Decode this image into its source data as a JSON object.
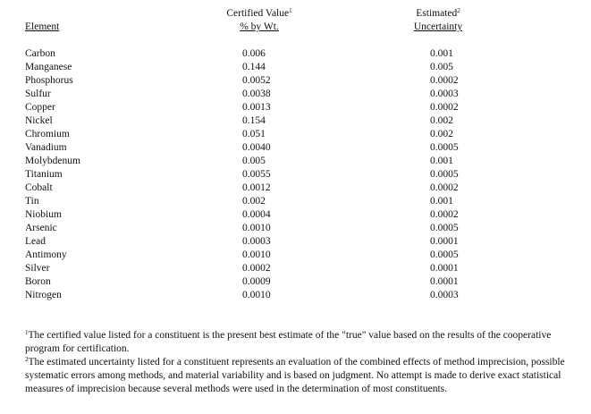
{
  "table": {
    "headers": {
      "element": "Element",
      "certified_line1": "Certified Value",
      "certified_sup": "1",
      "certified_line2": "% by Wt.",
      "uncertainty_line1": "Estimated",
      "uncertainty_sup": "2",
      "uncertainty_line2": "Uncertainty"
    },
    "rows": [
      {
        "element": "Carbon",
        "certified": "0.006",
        "uncertainty": "0.001"
      },
      {
        "element": "Manganese",
        "certified": "0.144",
        "uncertainty": "0.005"
      },
      {
        "element": "Phosphorus",
        "certified": "0.0052",
        "uncertainty": "0.0002"
      },
      {
        "element": "Sulfur",
        "certified": "0.0038",
        "uncertainty": "0.0003"
      },
      {
        "element": "Copper",
        "certified": "0.0013",
        "uncertainty": "0.0002"
      },
      {
        "element": "Nickel",
        "certified": "0.154",
        "uncertainty": "0.002"
      },
      {
        "element": "Chromium",
        "certified": "0.051",
        "uncertainty": "0.002"
      },
      {
        "element": "Vanadium",
        "certified": "0.0040",
        "uncertainty": "0.0005"
      },
      {
        "element": "Molybdenum",
        "certified": "0.005",
        "uncertainty": "0.001"
      },
      {
        "element": "Titanium",
        "certified": "0.0055",
        "uncertainty": "0.0005"
      },
      {
        "element": "Cobalt",
        "certified": "0.0012",
        "uncertainty": "0.0002"
      },
      {
        "element": "Tin",
        "certified": "0.002",
        "uncertainty": "0.001"
      },
      {
        "element": "Niobium",
        "certified": "0.0004",
        "uncertainty": "0.0002"
      },
      {
        "element": "Arsenic",
        "certified": "0.0010",
        "uncertainty": "0.0005"
      },
      {
        "element": "Lead",
        "certified": "0.0003",
        "uncertainty": "0.0001"
      },
      {
        "element": "Antimony",
        "certified": "0.0010",
        "uncertainty": "0.0005"
      },
      {
        "element": "Silver",
        "certified": "0.0002",
        "uncertainty": "0.0001"
      },
      {
        "element": "Boron",
        "certified": "0.0009",
        "uncertainty": "0.0001"
      },
      {
        "element": "Nitrogen",
        "certified": "0.0010",
        "uncertainty": "0.0003"
      }
    ]
  },
  "footnotes": [
    {
      "mark": "1",
      "text": "The certified value listed for a constituent is the present best estimate of the \"true\" value based on the results  of the cooperative program for certification."
    },
    {
      "mark": "2",
      "text": "The estimated uncertainty listed for a constituent represents an evaluation of the combined effects of method imprecision, possible systematic errors among methods, and material variability and is based on judgment.   No attempt is made to derive exact statistical measures of imprecision because several methods were used in  the determination of most constituents."
    }
  ]
}
